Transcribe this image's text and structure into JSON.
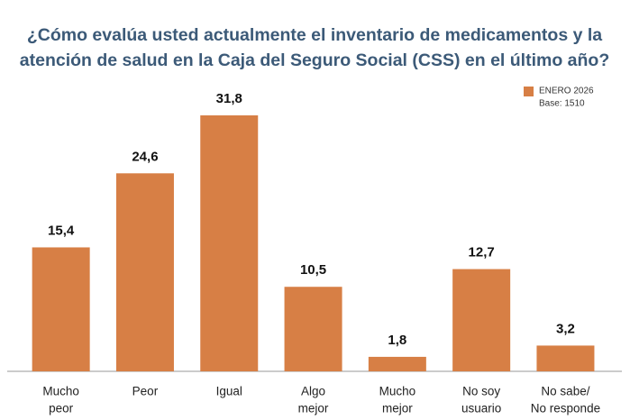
{
  "chart_data": {
    "type": "bar",
    "title": [
      "¿Cómo evalúa usted actualmente el inventario de medicamentos y la",
      "atención de salud en la Caja del Seguro Social (CSS) en el último año?"
    ],
    "categories": [
      [
        "Mucho",
        "peor"
      ],
      [
        "Peor"
      ],
      [
        "Igual"
      ],
      [
        "Algo",
        "mejor"
      ],
      [
        "Mucho",
        "mejor"
      ],
      [
        "No soy",
        "usuario"
      ],
      [
        "No sabe/",
        "No responde"
      ]
    ],
    "series": [
      {
        "name": "ENERO 2026",
        "color": "#d77f45",
        "values": [
          15.4,
          24.6,
          31.8,
          10.5,
          1.8,
          12.7,
          3.2
        ],
        "value_labels": [
          "15,4",
          "24,6",
          "31,8",
          "10,5",
          "1,8",
          "12,7",
          "3,2"
        ]
      }
    ],
    "legend_note": "Base: 1510"
  }
}
